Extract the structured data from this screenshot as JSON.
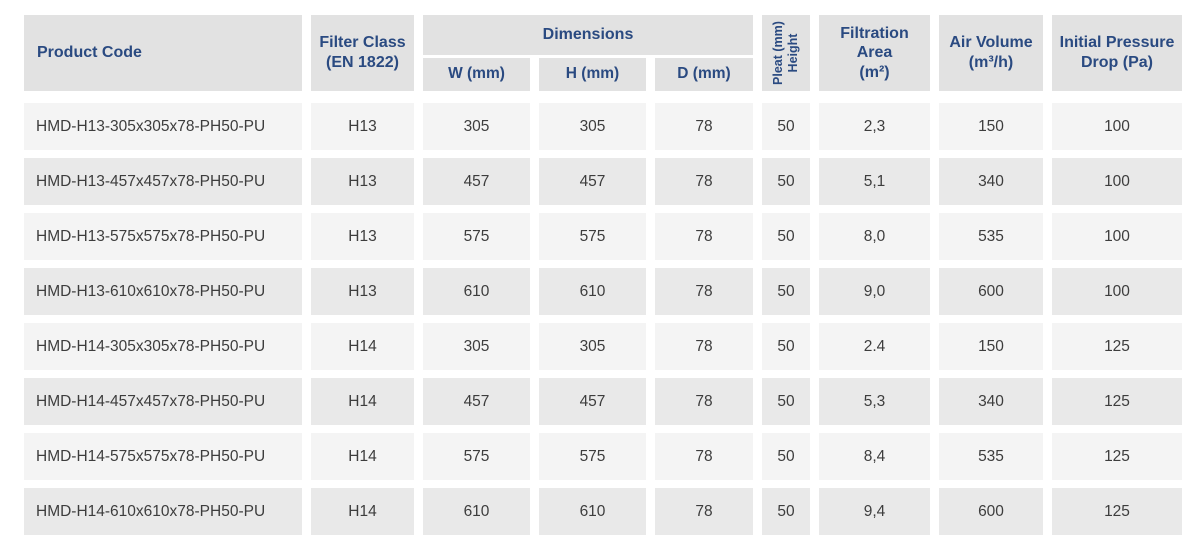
{
  "table": {
    "header": {
      "product_code": "Product Code",
      "filter_class_line1": "Filter Class",
      "filter_class_line2": "(EN 1822)",
      "dimensions": "Dimensions",
      "w": "W (mm)",
      "h": "H (mm)",
      "d": "D (mm)",
      "pleat_line1": "Pleat (mm)",
      "pleat_line2": "Height",
      "filtration_line1": "Filtration",
      "filtration_line2": "Area",
      "filtration_line3": "(m²)",
      "air_line1": "Air Volume",
      "air_line2": "(m³/h)",
      "pressure_line1": "Initial Pressure",
      "pressure_line2": "Drop (Pa)"
    },
    "columns": [
      "Product Code",
      "Filter Class (EN 1822)",
      "W (mm)",
      "H (mm)",
      "D (mm)",
      "Pleat (mm) Height",
      "Filtration Area (m²)",
      "Air Volume (m³/h)",
      "Initial Pressure Drop (Pa)"
    ],
    "rows": [
      [
        "HMD-H13-305x305x78-PH50-PU",
        "H13",
        "305",
        "305",
        "78",
        "50",
        "2,3",
        "150",
        "100"
      ],
      [
        "HMD-H13-457x457x78-PH50-PU",
        "H13",
        "457",
        "457",
        "78",
        "50",
        "5,1",
        "340",
        "100"
      ],
      [
        "HMD-H13-575x575x78-PH50-PU",
        "H13",
        "575",
        "575",
        "78",
        "50",
        "8,0",
        "535",
        "100"
      ],
      [
        "HMD-H13-610x610x78-PH50-PU",
        "H13",
        "610",
        "610",
        "78",
        "50",
        "9,0",
        "600",
        "100"
      ],
      [
        "HMD-H14-305x305x78-PH50-PU",
        "H14",
        "305",
        "305",
        "78",
        "50",
        "2.4",
        "150",
        "125"
      ],
      [
        "HMD-H14-457x457x78-PH50-PU",
        "H14",
        "457",
        "457",
        "78",
        "50",
        "5,3",
        "340",
        "125"
      ],
      [
        "HMD-H14-575x575x78-PH50-PU",
        "H14",
        "575",
        "575",
        "78",
        "50",
        "8,4",
        "535",
        "125"
      ],
      [
        "HMD-H14-610x610x78-PH50-PU",
        "H14",
        "610",
        "610",
        "78",
        "50",
        "9,4",
        "600",
        "125"
      ]
    ],
    "colors": {
      "header_bg": "#e2e2e2",
      "row_odd_bg": "#f4f4f4",
      "row_even_bg": "#e9e9e9",
      "header_text": "#2a4a81",
      "data_text": "#3d3d3d"
    }
  }
}
